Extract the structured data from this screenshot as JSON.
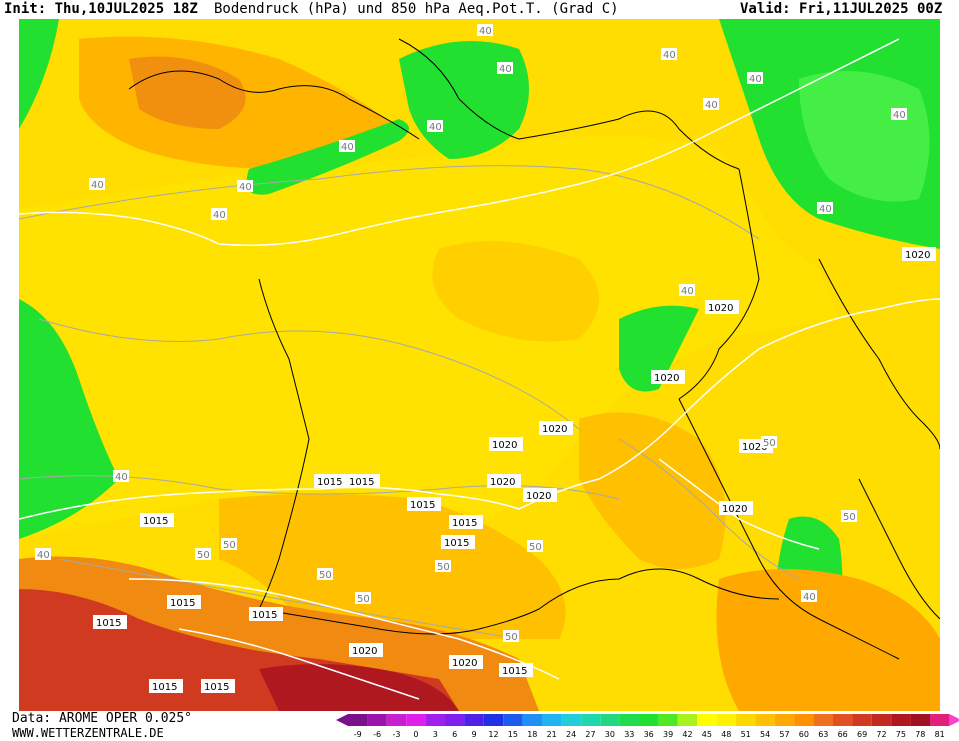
{
  "header": {
    "init": "Init: Thu,10JUL2025 18Z",
    "title": "Bodendruck (hPa) und 850 hPa Aeq.Pot.T. (Grad C)",
    "valid": "Valid: Fri,11JUL2025 00Z"
  },
  "footer": {
    "data_source": "Data: AROME OPER 0.025°",
    "site": "WWW.WETTERZENTRALE.DE"
  },
  "legend": {
    "ticks": [
      "-9",
      "-6",
      "-3",
      "0",
      "3",
      "6",
      "9",
      "12",
      "15",
      "18",
      "21",
      "24",
      "27",
      "30",
      "33",
      "36",
      "39",
      "42",
      "45",
      "48",
      "51",
      "54",
      "57",
      "60",
      "63",
      "66",
      "69",
      "72",
      "75",
      "78",
      "81"
    ],
    "colors": [
      "#7c0f8c",
      "#9a14ad",
      "#c81fd0",
      "#e020e8",
      "#a020f0",
      "#7f1fee",
      "#4f20e8",
      "#2030e6",
      "#1e5cf0",
      "#2090f5",
      "#20b4f0",
      "#22ccd8",
      "#20d8b0",
      "#22d880",
      "#20dd50",
      "#20e030",
      "#50e820",
      "#a8f020",
      "#ffff00",
      "#fff000",
      "#ffd800",
      "#ffc000",
      "#ffa800",
      "#ff9000",
      "#f07020",
      "#e05020",
      "#d03a20",
      "#c02a20",
      "#b01820",
      "#a0101e",
      "#e0207a"
    ],
    "arrow_left_color": "#7c0f8c",
    "arrow_right_color": "#ff40d0"
  },
  "isobar_labels": {
    "p1015": "1015",
    "p1020": "1020",
    "t40": "40",
    "t50": "50"
  },
  "map_colors": {
    "base_yellow": "#ffdd00",
    "light_yellow": "#ffff00",
    "orange": "#ffae00",
    "dark_orange": "#f08a10",
    "green": "#22e030",
    "light_green": "#44ee44",
    "red": "#d03a20",
    "dark_red": "#b01820",
    "border": "#000000",
    "isobar": "#ffffff",
    "isotherm": "#a8a8a8"
  }
}
